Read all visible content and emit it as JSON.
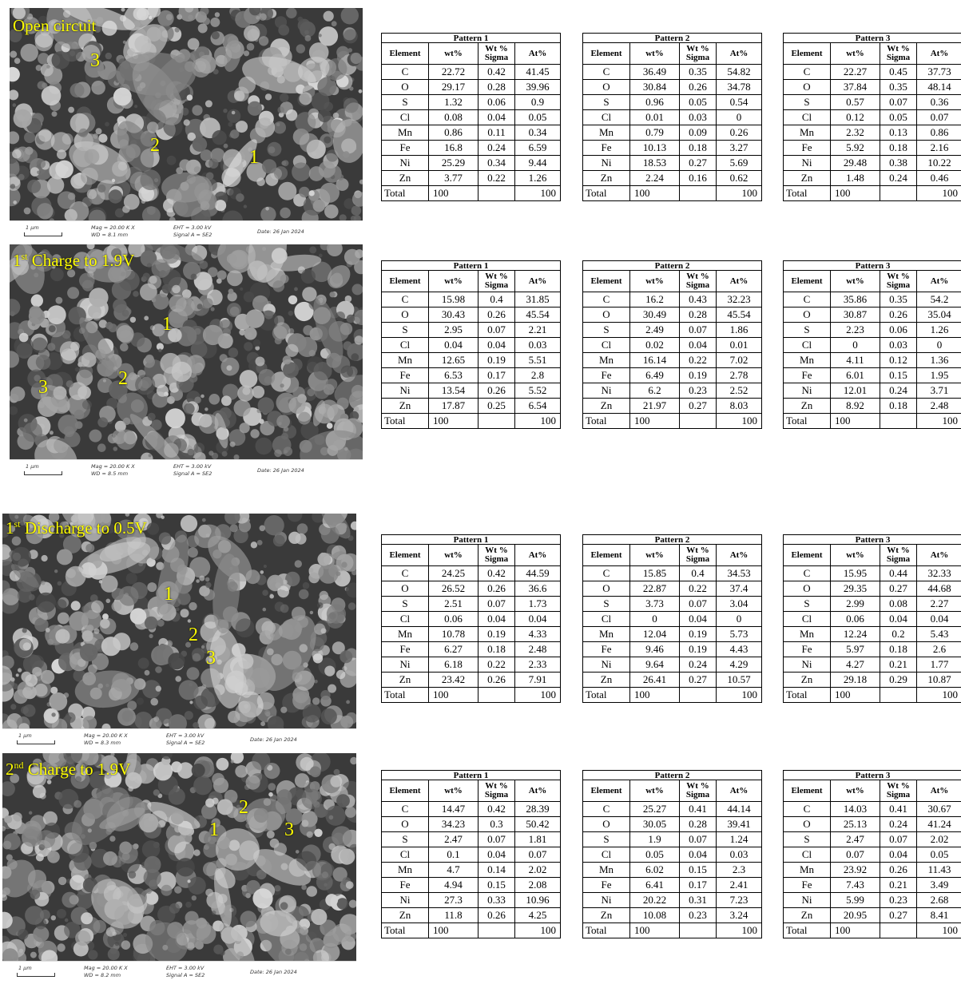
{
  "panels": [
    {
      "title_main": "Open circuit",
      "title_sup": "",
      "title_rest": "",
      "markers": [
        "3",
        "2",
        "1"
      ],
      "info": {
        "scale": "1 μm",
        "mag": "Mag =  20.00 K X",
        "wd": "WD = 8.1 mm",
        "eht": "EHT =  3.00 kV",
        "signal": "Signal A = SE2",
        "date": "Date: 26 Jan 2024"
      }
    },
    {
      "title_main": "1",
      "title_sup": "st",
      "title_rest": " Charge to 1.9V",
      "markers": [
        "1",
        "2",
        "3"
      ],
      "info": {
        "scale": "1 μm",
        "mag": "Mag =  20.00 K X",
        "wd": "WD = 8.5 mm",
        "eht": "EHT =  3.00 kV",
        "signal": "Signal A = SE2",
        "date": "Date: 26 Jan 2024"
      }
    },
    {
      "title_main": "1",
      "title_sup": "st",
      "title_rest": " Discharge to 0.5V",
      "markers": [
        "1",
        "2",
        "3"
      ],
      "info": {
        "scale": "1 μm",
        "mag": "Mag =  20.00 K X",
        "wd": "WD = 8.3 mm",
        "eht": "EHT =  3.00 kV",
        "signal": "Signal A = SE2",
        "date": "Date: 26 Jan 2024"
      }
    },
    {
      "title_main": "2",
      "title_sup": "nd",
      "title_rest": " Charge to 1.9V",
      "markers": [
        "2",
        "1",
        "3"
      ],
      "info": {
        "scale": "1 μm",
        "mag": "Mag =  20.00 K X",
        "wd": "WD = 8.2 mm",
        "eht": "EHT =  3.00 kV",
        "signal": "Signal A = SE2",
        "date": "Date: 26 Jan 2024"
      }
    }
  ],
  "table_headers": {
    "element": "Element",
    "wt": "wt%",
    "sigma_line1": "Wt %",
    "sigma_line2": "Sigma",
    "at": "At%",
    "total": "Total",
    "total_value": "100"
  },
  "pattern_names": [
    "Pattern 1",
    "Pattern 2",
    "Pattern 3"
  ],
  "elements": [
    "C",
    "O",
    "S",
    "Cl",
    "Mn",
    "Fe",
    "Ni",
    "Zn"
  ],
  "tables": [
    [
      [
        [
          "22.72",
          "0.42",
          "41.45"
        ],
        [
          "29.17",
          "0.28",
          "39.96"
        ],
        [
          "1.32",
          "0.06",
          "0.9"
        ],
        [
          "0.08",
          "0.04",
          "0.05"
        ],
        [
          "0.86",
          "0.11",
          "0.34"
        ],
        [
          "16.8",
          "0.24",
          "6.59"
        ],
        [
          "25.29",
          "0.34",
          "9.44"
        ],
        [
          "3.77",
          "0.22",
          "1.26"
        ]
      ],
      [
        [
          "36.49",
          "0.35",
          "54.82"
        ],
        [
          "30.84",
          "0.26",
          "34.78"
        ],
        [
          "0.96",
          "0.05",
          "0.54"
        ],
        [
          "0.01",
          "0.03",
          "0"
        ],
        [
          "0.79",
          "0.09",
          "0.26"
        ],
        [
          "10.13",
          "0.18",
          "3.27"
        ],
        [
          "18.53",
          "0.27",
          "5.69"
        ],
        [
          "2.24",
          "0.16",
          "0.62"
        ]
      ],
      [
        [
          "22.27",
          "0.45",
          "37.73"
        ],
        [
          "37.84",
          "0.35",
          "48.14"
        ],
        [
          "0.57",
          "0.07",
          "0.36"
        ],
        [
          "0.12",
          "0.05",
          "0.07"
        ],
        [
          "2.32",
          "0.13",
          "0.86"
        ],
        [
          "5.92",
          "0.18",
          "2.16"
        ],
        [
          "29.48",
          "0.38",
          "10.22"
        ],
        [
          "1.48",
          "0.24",
          "0.46"
        ]
      ]
    ],
    [
      [
        [
          "15.98",
          "0.4",
          "31.85"
        ],
        [
          "30.43",
          "0.26",
          "45.54"
        ],
        [
          "2.95",
          "0.07",
          "2.21"
        ],
        [
          "0.04",
          "0.04",
          "0.03"
        ],
        [
          "12.65",
          "0.19",
          "5.51"
        ],
        [
          "6.53",
          "0.17",
          "2.8"
        ],
        [
          "13.54",
          "0.26",
          "5.52"
        ],
        [
          "17.87",
          "0.25",
          "6.54"
        ]
      ],
      [
        [
          "16.2",
          "0.43",
          "32.23"
        ],
        [
          "30.49",
          "0.28",
          "45.54"
        ],
        [
          "2.49",
          "0.07",
          "1.86"
        ],
        [
          "0.02",
          "0.04",
          "0.01"
        ],
        [
          "16.14",
          "0.22",
          "7.02"
        ],
        [
          "6.49",
          "0.19",
          "2.78"
        ],
        [
          "6.2",
          "0.23",
          "2.52"
        ],
        [
          "21.97",
          "0.27",
          "8.03"
        ]
      ],
      [
        [
          "35.86",
          "0.35",
          "54.2"
        ],
        [
          "30.87",
          "0.26",
          "35.04"
        ],
        [
          "2.23",
          "0.06",
          "1.26"
        ],
        [
          "0",
          "0.03",
          "0"
        ],
        [
          "4.11",
          "0.12",
          "1.36"
        ],
        [
          "6.01",
          "0.15",
          "1.95"
        ],
        [
          "12.01",
          "0.24",
          "3.71"
        ],
        [
          "8.92",
          "0.18",
          "2.48"
        ]
      ]
    ],
    [
      [
        [
          "24.25",
          "0.42",
          "44.59"
        ],
        [
          "26.52",
          "0.26",
          "36.6"
        ],
        [
          "2.51",
          "0.07",
          "1.73"
        ],
        [
          "0.06",
          "0.04",
          "0.04"
        ],
        [
          "10.78",
          "0.19",
          "4.33"
        ],
        [
          "6.27",
          "0.18",
          "2.48"
        ],
        [
          "6.18",
          "0.22",
          "2.33"
        ],
        [
          "23.42",
          "0.26",
          "7.91"
        ]
      ],
      [
        [
          "15.85",
          "0.4",
          "34.53"
        ],
        [
          "22.87",
          "0.22",
          "37.4"
        ],
        [
          "3.73",
          "0.07",
          "3.04"
        ],
        [
          "0",
          "0.04",
          "0"
        ],
        [
          "12.04",
          "0.19",
          "5.73"
        ],
        [
          "9.46",
          "0.19",
          "4.43"
        ],
        [
          "9.64",
          "0.24",
          "4.29"
        ],
        [
          "26.41",
          "0.27",
          "10.57"
        ]
      ],
      [
        [
          "15.95",
          "0.44",
          "32.33"
        ],
        [
          "29.35",
          "0.27",
          "44.68"
        ],
        [
          "2.99",
          "0.08",
          "2.27"
        ],
        [
          "0.06",
          "0.04",
          "0.04"
        ],
        [
          "12.24",
          "0.2",
          "5.43"
        ],
        [
          "5.97",
          "0.18",
          "2.6"
        ],
        [
          "4.27",
          "0.21",
          "1.77"
        ],
        [
          "29.18",
          "0.29",
          "10.87"
        ]
      ]
    ],
    [
      [
        [
          "14.47",
          "0.42",
          "28.39"
        ],
        [
          "34.23",
          "0.3",
          "50.42"
        ],
        [
          "2.47",
          "0.07",
          "1.81"
        ],
        [
          "0.1",
          "0.04",
          "0.07"
        ],
        [
          "4.7",
          "0.14",
          "2.02"
        ],
        [
          "4.94",
          "0.15",
          "2.08"
        ],
        [
          "27.3",
          "0.33",
          "10.96"
        ],
        [
          "11.8",
          "0.26",
          "4.25"
        ]
      ],
      [
        [
          "25.27",
          "0.41",
          "44.14"
        ],
        [
          "30.05",
          "0.28",
          "39.41"
        ],
        [
          "1.9",
          "0.07",
          "1.24"
        ],
        [
          "0.05",
          "0.04",
          "0.03"
        ],
        [
          "6.02",
          "0.15",
          "2.3"
        ],
        [
          "6.41",
          "0.17",
          "2.41"
        ],
        [
          "20.22",
          "0.31",
          "7.23"
        ],
        [
          "10.08",
          "0.23",
          "3.24"
        ]
      ],
      [
        [
          "14.03",
          "0.41",
          "30.67"
        ],
        [
          "25.13",
          "0.24",
          "41.24"
        ],
        [
          "2.47",
          "0.07",
          "2.02"
        ],
        [
          "0.07",
          "0.04",
          "0.05"
        ],
        [
          "23.92",
          "0.26",
          "11.43"
        ],
        [
          "7.43",
          "0.21",
          "3.49"
        ],
        [
          "5.99",
          "0.23",
          "2.68"
        ],
        [
          "20.95",
          "0.27",
          "8.41"
        ]
      ]
    ]
  ]
}
